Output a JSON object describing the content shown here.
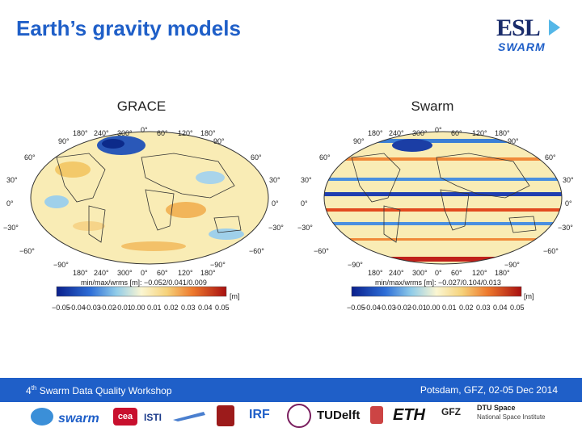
{
  "slide": {
    "title": "Earth’s gravity models",
    "logo": {
      "top": "ESL",
      "bottom": "SWARM"
    }
  },
  "panels": [
    {
      "label": "GRACE",
      "lon_top": [
        "180°",
        "240°",
        "300°",
        "0°",
        "60°",
        "120°",
        "180°"
      ],
      "lon_bottom": [
        "180°",
        "240°",
        "300°",
        "0°",
        "60°",
        "120°",
        "180°"
      ],
      "lat_left": [
        "90°",
        "60°",
        "30°",
        "0°",
        "−30°",
        "−60°",
        "−90°"
      ],
      "lat_right": [
        "90°",
        "60°",
        "30°",
        "0°",
        "−30°",
        "−60°",
        "−90°"
      ],
      "stats": "min/max/wrms [m]: −0.052/0.041/0.009",
      "unit": "[m]",
      "ticks": [
        "−0.05",
        "−0.04",
        "−0.03",
        "−0.02",
        "−0.01",
        "0.00",
        "0.01",
        "0.02",
        "0.03",
        "0.04",
        "0.05"
      ]
    },
    {
      "label": "Swarm",
      "lon_top": [
        "180°",
        "240°",
        "300°",
        "0°",
        "60°",
        "120°",
        "180°"
      ],
      "lon_bottom": [
        "180°",
        "240°",
        "300°",
        "0°",
        "60°",
        "120°",
        "180°"
      ],
      "lat_left": [
        "90°",
        "60°",
        "30°",
        "0°",
        "−30°",
        "−60°",
        "−90°"
      ],
      "lat_right": [
        "90°",
        "60°",
        "30°",
        "0°",
        "−30°",
        "−60°",
        "−90°"
      ],
      "stats": "min/max/wrms [m]: −0.027/0.104/0.013",
      "unit": "[m]",
      "ticks": [
        "−0.05",
        "−0.04",
        "−0.03",
        "−0.02",
        "−0.01",
        "0.00",
        "0.01",
        "0.02",
        "0.03",
        "0.04",
        "0.05"
      ]
    }
  ],
  "footer": {
    "left_num": "4",
    "left_sup": "th",
    "left_text": " Swarm Data Quality Workshop",
    "right": "Potsdam, GFZ, 02-05 Dec 2014"
  },
  "partners": [
    "swarm",
    "cea",
    "ISTI",
    "TUDelft",
    "IRF",
    "ETH",
    "GFZ",
    "DTU Space",
    "National Space Institute"
  ],
  "colors": {
    "title": "#1f5fc8",
    "footer": "#1f5fc8"
  }
}
